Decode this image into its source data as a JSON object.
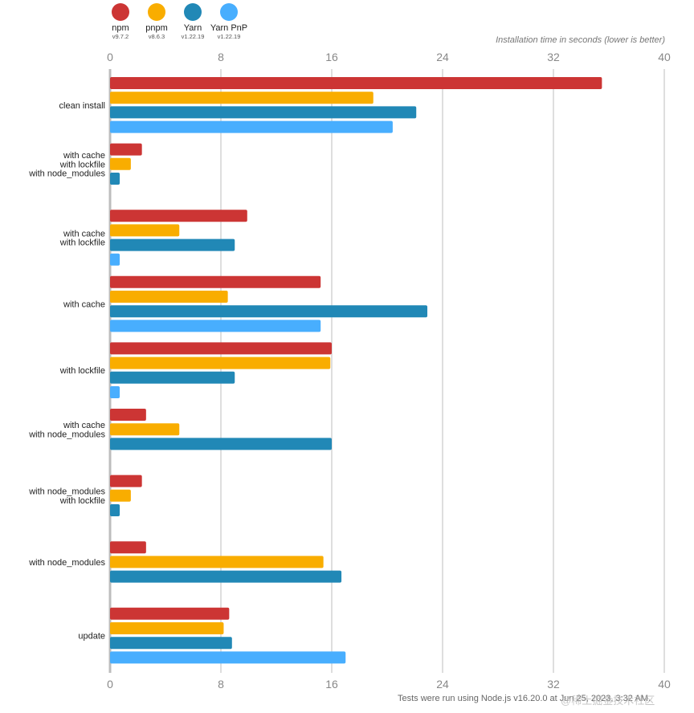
{
  "subtitle": "Installation time in seconds (lower is better)",
  "footer": "Tests were run using Node.js v16.20.0 at Jun 25, 2023, 3:32 AM.",
  "watermark": "@稀土掘金技术社区",
  "legend": [
    {
      "name": "npm",
      "version": "v9.7.2",
      "color": "#cc3534"
    },
    {
      "name": "pnpm",
      "version": "v8.6.3",
      "color": "#f9ad00"
    },
    {
      "name": "Yarn",
      "version": "v1.22.19",
      "color": "#2188b6"
    },
    {
      "name": "Yarn PnP",
      "version": "v1.22.19",
      "color": "#48aefe"
    }
  ],
  "chart_data": {
    "type": "bar",
    "orientation": "horizontal",
    "xlim": [
      0,
      40
    ],
    "xticks": [
      0,
      8,
      16,
      24,
      32,
      40
    ],
    "xlabel": "Installation time in seconds (lower is better)",
    "grid": true,
    "categories": [
      [
        "clean install"
      ],
      [
        "with cache",
        "with lockfile",
        "with node_modules"
      ],
      [
        "with cache",
        "with lockfile"
      ],
      [
        "with cache"
      ],
      [
        "with lockfile"
      ],
      [
        "with cache",
        "with node_modules"
      ],
      [
        "with node_modules",
        "with lockfile"
      ],
      [
        "with node_modules"
      ],
      [
        "update"
      ]
    ],
    "series": [
      {
        "name": "npm",
        "values": [
          35.5,
          2.3,
          9.9,
          15.2,
          16.0,
          2.6,
          2.3,
          2.6,
          8.6
        ]
      },
      {
        "name": "pnpm",
        "values": [
          19.0,
          1.5,
          5.0,
          8.5,
          15.9,
          5.0,
          1.5,
          15.4,
          8.2
        ]
      },
      {
        "name": "Yarn",
        "values": [
          22.1,
          0.7,
          9.0,
          22.9,
          9.0,
          16.0,
          0.7,
          16.7,
          8.8
        ]
      },
      {
        "name": "Yarn PnP",
        "values": [
          20.4,
          null,
          0.7,
          15.2,
          0.7,
          null,
          null,
          null,
          17.0
        ]
      }
    ]
  }
}
